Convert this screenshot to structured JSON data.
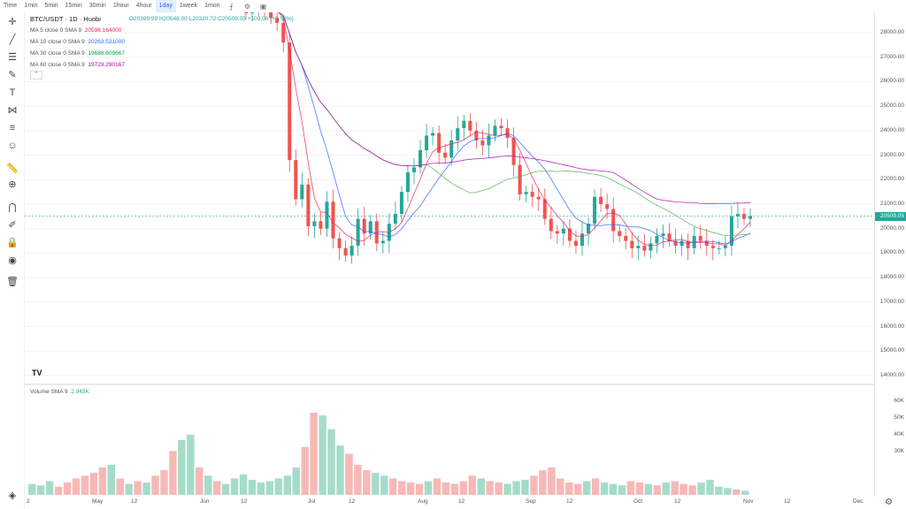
{
  "toolbar": {
    "timeframes": [
      "Time",
      "1min",
      "5min",
      "15min",
      "30min",
      "1hour",
      "4hour",
      "1day",
      "1week",
      "1mon"
    ],
    "active": "1day"
  },
  "legend": {
    "symbol": "BTC/USDT · 1D · Huobi",
    "ohlc": "O20399.99  H20548.00  L20320.72  C20509.05  +109.06 (+0.53%)",
    "ma": [
      {
        "label": "MA 5 close 0 SMA 9",
        "value": "20598.164000",
        "color": "#e91e63"
      },
      {
        "label": "MA 10 close 0 SMA 9",
        "value": "20263.531000",
        "color": "#2962ff"
      },
      {
        "label": "MA 30 close 0 SMA 9",
        "value": "19688.609667",
        "color": "#00c853"
      },
      {
        "label": "MA 60 close 0 SMA 9",
        "value": "19729.290167",
        "color": "#aa00aa"
      }
    ],
    "volume": "Volume SMA 9",
    "volume_value": "2.945K"
  },
  "price_axis": [
    "28000.00",
    "27000.00",
    "26000.00",
    "25000.00",
    "24000.00",
    "23000.00",
    "22000.00",
    "21000.00",
    "20000.00",
    "19000.00",
    "18000.00",
    "17000.00",
    "16000.00",
    "15000.00",
    "14000.00"
  ],
  "last_price": "20509.05",
  "volume_axis": [
    "60K",
    "50K",
    "40K",
    "30K"
  ],
  "time_axis": [
    "2",
    "May",
    "12",
    "Jun",
    "12",
    "Jul",
    "12",
    "Aug",
    "12",
    "Sep",
    "12",
    "Oct",
    "12",
    "Nov",
    "12",
    "Dec"
  ],
  "colors": {
    "up": "#26a69a",
    "down": "#ef5350",
    "up_vol": "#a5dcc9",
    "down_vol": "#f7b9b7"
  },
  "chart_data": {
    "type": "candlestick",
    "title": "BTC/USDT · 1D · Huobi",
    "ylim": [
      14000,
      28500
    ],
    "candles_note": "Approximate daily closes from the chart",
    "closes": [
      28800,
      29100,
      29400,
      29000,
      28600,
      28400,
      27600,
      22800,
      21200,
      21800,
      20100,
      20300,
      20000,
      21100,
      19600,
      19200,
      18900,
      19300,
      20400,
      19800,
      20300,
      19400,
      19500,
      20200,
      20600,
      21500,
      22300,
      22500,
      23200,
      23800,
      23900,
      23100,
      22900,
      23600,
      24100,
      24400,
      24000,
      23600,
      23400,
      23800,
      24200,
      24100,
      23700,
      22600,
      21400,
      21500,
      21300,
      21200,
      20400,
      19900,
      19800,
      20000,
      19500,
      19300,
      19800,
      20200,
      21300,
      21000,
      20800,
      19900,
      19700,
      19500,
      19200,
      19300,
      19100,
      19400,
      19700,
      19800,
      19500,
      19300,
      19500,
      19200,
      19700,
      19500,
      19300,
      19200,
      19200,
      19300,
      20500,
      20600,
      20400,
      20509
    ],
    "volume_k": [
      8,
      7,
      10,
      6,
      9,
      12,
      14,
      16,
      20,
      22,
      12,
      8,
      10,
      9,
      14,
      18,
      32,
      40,
      44,
      20,
      14,
      10,
      8,
      12,
      15,
      11,
      9,
      10,
      12,
      14,
      20,
      35,
      60,
      58,
      48,
      36,
      30,
      22,
      18,
      16,
      14,
      12,
      10,
      9,
      8,
      10,
      12,
      9,
      8,
      10,
      14,
      12,
      10,
      9,
      8,
      10,
      11,
      14,
      18,
      20,
      12,
      9,
      8,
      10,
      12,
      9,
      8,
      7,
      10,
      9,
      8,
      7,
      9,
      10,
      8,
      7,
      9,
      11,
      6,
      5,
      4,
      3
    ]
  }
}
